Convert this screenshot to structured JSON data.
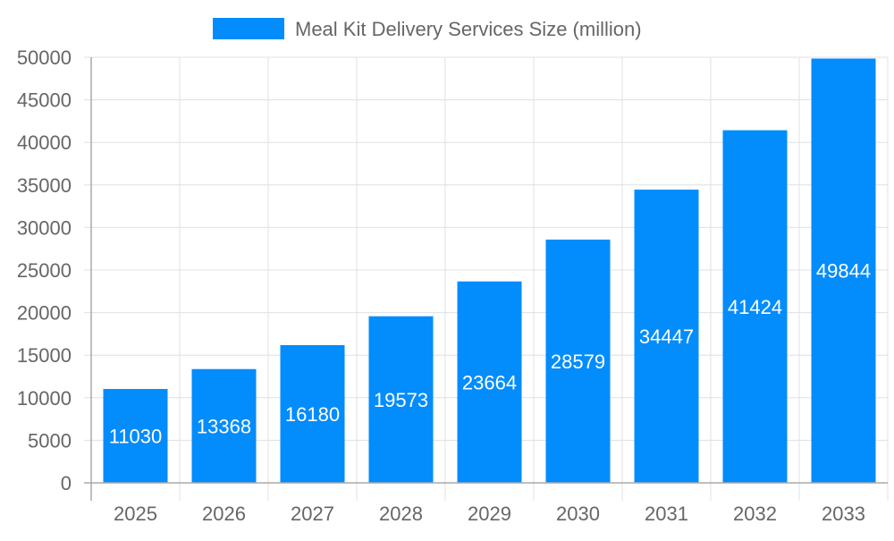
{
  "chart_data": {
    "type": "bar",
    "title": "",
    "xlabel": "",
    "ylabel": "",
    "categories": [
      "2025",
      "2026",
      "2027",
      "2028",
      "2029",
      "2030",
      "2031",
      "2032",
      "2033"
    ],
    "series": [
      {
        "name": "Meal Kit Delivery Services Size (million)",
        "values": [
          11030,
          13368,
          16180,
          19573,
          23664,
          28579,
          34447,
          41424,
          49844
        ]
      }
    ],
    "ylim": [
      0,
      50000
    ],
    "yticks": [
      0,
      5000,
      10000,
      15000,
      20000,
      25000,
      30000,
      35000,
      40000,
      45000,
      50000
    ],
    "grid": true,
    "legend": "top-center",
    "data_labels": true,
    "colors": {
      "bar": "#038cfc",
      "label": "#ffffff",
      "text": "#666666",
      "grid": "#e0e0e0"
    }
  }
}
